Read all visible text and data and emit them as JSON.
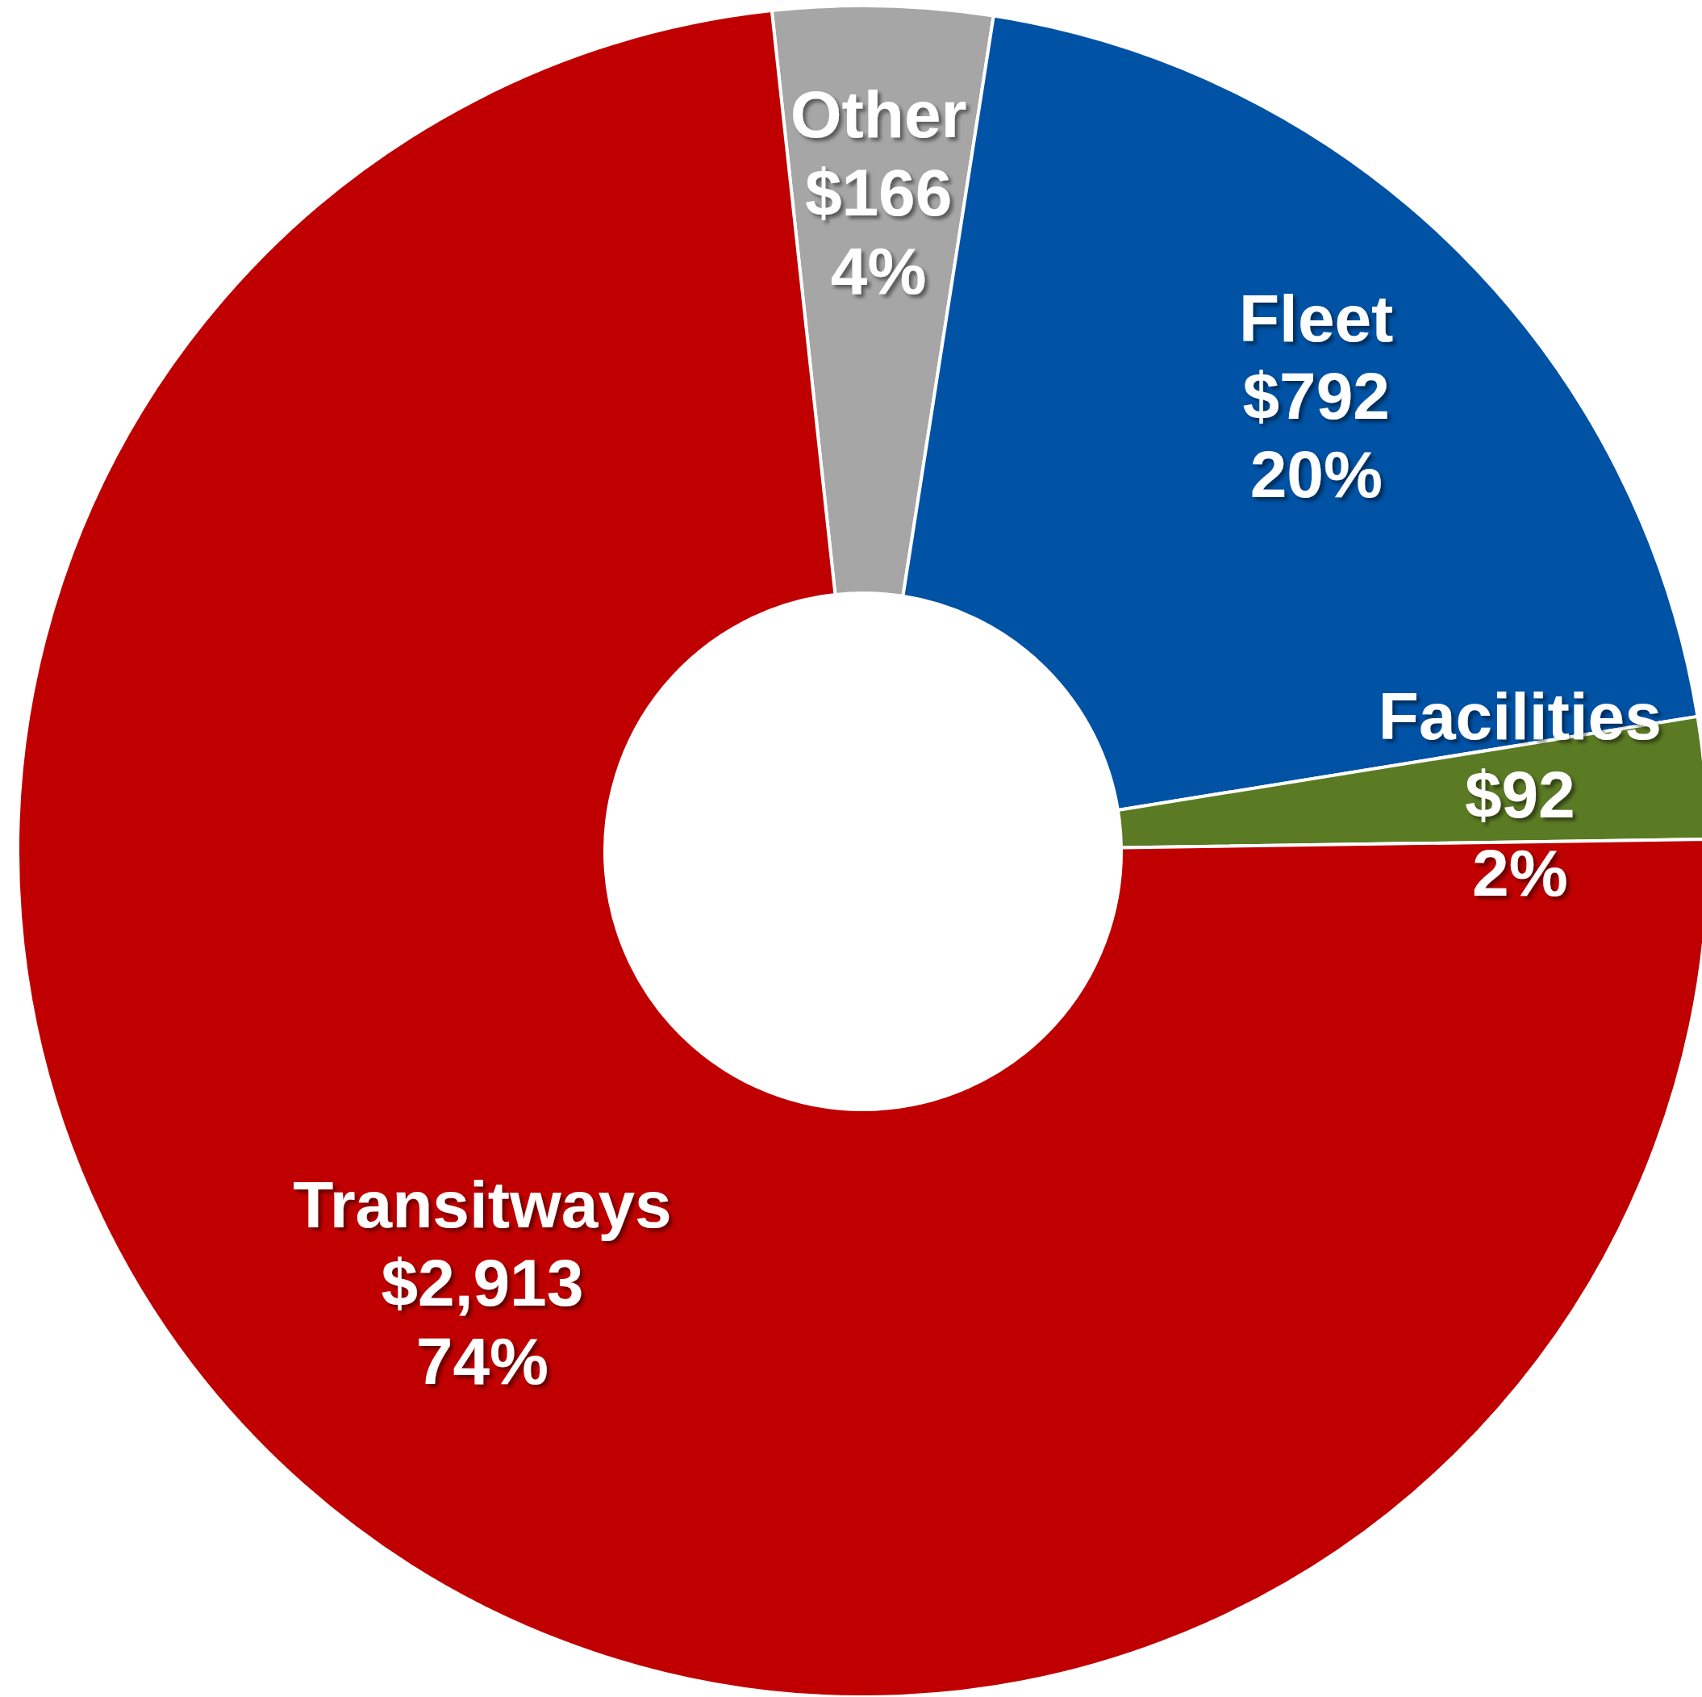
{
  "chart_data": {
    "type": "donut",
    "categories": [
      "Other",
      "Fleet",
      "Facilities",
      "Transitways"
    ],
    "values": [
      166,
      792,
      92,
      2913
    ],
    "value_labels": [
      "$166\n4%",
      "$792\n20%",
      "$92\n2%",
      "$2,913\n74%"
    ],
    "colors": [
      "#a6a6a6",
      "#0052a5",
      "#5b7a24",
      "#c00000"
    ]
  }
}
